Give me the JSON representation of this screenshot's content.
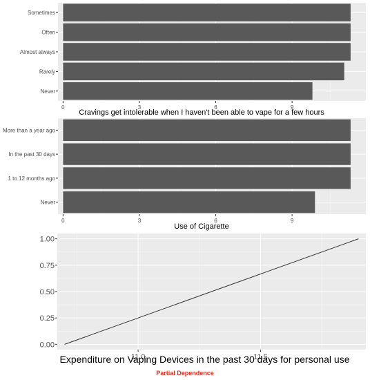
{
  "colors": {
    "panel": "#ebebeb",
    "grid_major": "#ffffff",
    "bar": "#595959",
    "line": "#333333",
    "tick_text": "#4d4d4d",
    "footer": "#e8261a"
  },
  "footer": "Partial Dependence",
  "chart_data": [
    {
      "type": "bar",
      "orientation": "horizontal",
      "xlabel": "Cravings get intolerable when I haven't been able to vape for a few hours",
      "ylabel": "",
      "categories": [
        "Sometimes",
        "Often",
        "Almost always",
        "Rarely",
        "Never"
      ],
      "values": [
        11.3,
        11.3,
        11.3,
        11.05,
        9.8
      ],
      "xlim": [
        -0.2,
        11.9
      ],
      "xticks": [
        0,
        3,
        6,
        9
      ],
      "grid": true
    },
    {
      "type": "bar",
      "orientation": "horizontal",
      "xlabel": "Use of Cigarette",
      "ylabel": "",
      "categories": [
        "More than a year ago",
        "In the past 30 days",
        "1 to 12 months ago",
        "Never"
      ],
      "values": [
        11.3,
        11.3,
        11.3,
        9.9
      ],
      "xlim": [
        -0.2,
        11.9
      ],
      "xticks": [
        0,
        3,
        6,
        9
      ],
      "grid": true
    },
    {
      "type": "line",
      "xlabel": "Expenditure on Vaping Devices in the past 30 days for personal use",
      "ylabel": "",
      "x": [
        10.7,
        11.9
      ],
      "y": [
        0.0,
        1.0
      ],
      "xlim": [
        10.67,
        11.93
      ],
      "ylim": [
        -0.05,
        1.05
      ],
      "xticks": [
        "11.0",
        "11.5"
      ],
      "yticks": [
        "0.00",
        "0.25",
        "0.50",
        "0.75",
        "1.00"
      ],
      "grid": true
    }
  ]
}
